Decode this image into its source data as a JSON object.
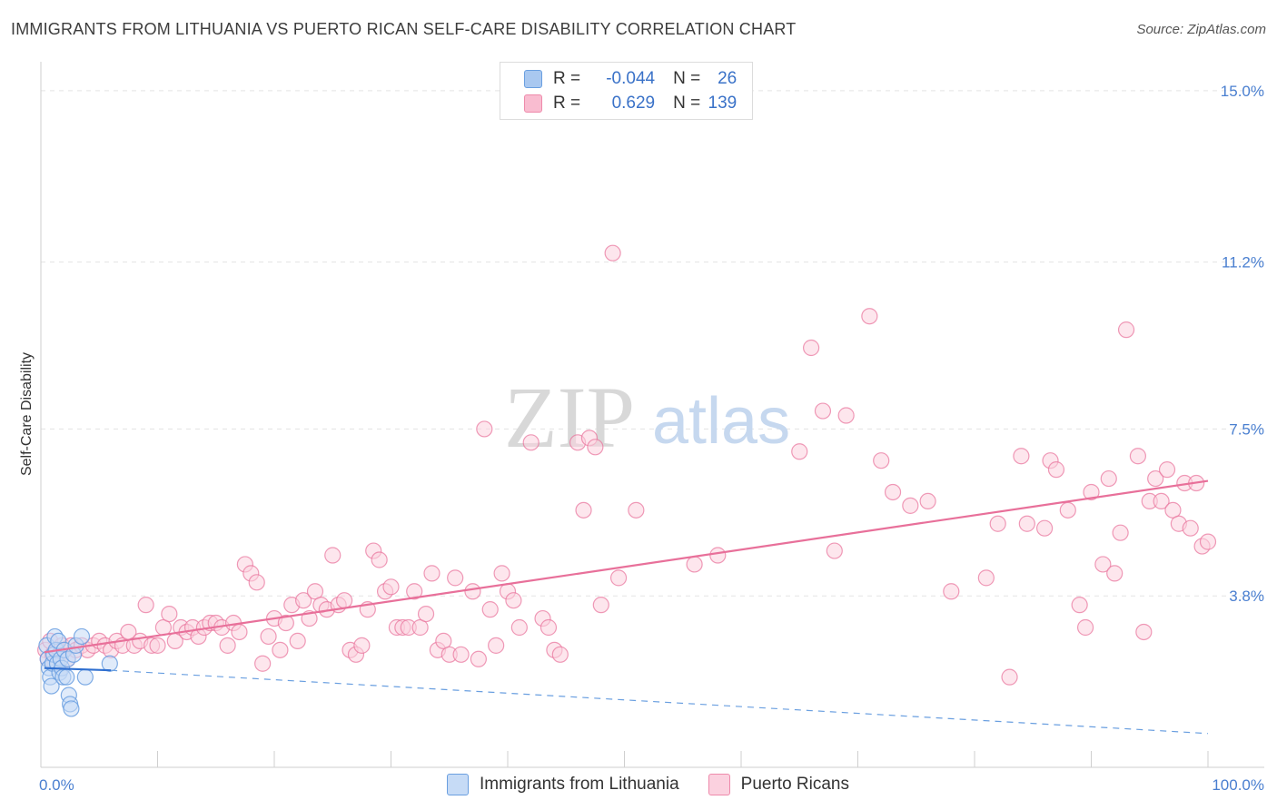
{
  "title": "IMMIGRANTS FROM LITHUANIA VS PUERTO RICAN SELF-CARE DISABILITY CORRELATION CHART",
  "source": "Source: ZipAtlas.com",
  "watermark": {
    "zip": "ZIP",
    "atlas": "atlas"
  },
  "legend": {
    "rows": [
      {
        "r_label": "R =",
        "r_value": "-0.044",
        "n_label": "N =",
        "n_value": "26",
        "color": "#a9c8f0",
        "border": "#6a9fe0"
      },
      {
        "r_label": "R =",
        "r_value": "0.629",
        "n_label": "N =",
        "n_value": "139",
        "color": "#f9bcd0",
        "border": "#ee8aab"
      }
    ]
  },
  "bottom_legend": [
    {
      "label": "Immigrants from Lithuania",
      "color": "#c6dbf6",
      "border": "#6a9fe0"
    },
    {
      "label": "Puerto Ricans",
      "color": "#fbd1df",
      "border": "#ee8aab"
    }
  ],
  "chart_data": {
    "type": "scatter",
    "title": "IMMIGRANTS FROM LITHUANIA VS PUERTO RICAN SELF-CARE DISABILITY CORRELATION CHART",
    "xlabel": "",
    "ylabel": "Self-Care Disability",
    "xlim": [
      0,
      100
    ],
    "ylim": [
      0,
      15.5
    ],
    "x_tick_labels": [
      "0.0%",
      "100.0%"
    ],
    "y_ticks": [
      3.8,
      7.5,
      11.2,
      15.0
    ],
    "y_tick_labels": [
      "3.8%",
      "7.5%",
      "11.2%",
      "15.0%"
    ],
    "grid": true,
    "series": [
      {
        "name": "Immigrants from Lithuania",
        "color": "#6a9fe0",
        "fill": "#c6dbf6",
        "points": [
          [
            0.5,
            2.7
          ],
          [
            0.6,
            2.4
          ],
          [
            0.7,
            2.2
          ],
          [
            0.8,
            2.0
          ],
          [
            0.9,
            1.8
          ],
          [
            1.0,
            2.3
          ],
          [
            1.1,
            2.5
          ],
          [
            1.2,
            2.9
          ],
          [
            1.3,
            2.6
          ],
          [
            1.4,
            2.3
          ],
          [
            1.5,
            2.8
          ],
          [
            1.6,
            2.1
          ],
          [
            1.7,
            2.4
          ],
          [
            1.8,
            2.2
          ],
          [
            1.9,
            2.0
          ],
          [
            2.0,
            2.6
          ],
          [
            2.2,
            2.0
          ],
          [
            2.3,
            2.4
          ],
          [
            2.4,
            1.6
          ],
          [
            2.5,
            1.4
          ],
          [
            2.6,
            1.3
          ],
          [
            2.8,
            2.5
          ],
          [
            3.0,
            2.7
          ],
          [
            3.5,
            2.9
          ],
          [
            3.8,
            2.0
          ],
          [
            5.9,
            2.3
          ]
        ],
        "trend": {
          "x": [
            0.3,
            6.0
          ],
          "y": [
            2.2,
            2.15
          ]
        },
        "trend_ext": {
          "x": [
            6.0,
            100.0
          ],
          "y": [
            2.15,
            0.75
          ]
        }
      },
      {
        "name": "Puerto Ricans",
        "color": "#e8709a",
        "fill": "#fbd1df",
        "points": [
          [
            0.4,
            2.6
          ],
          [
            0.6,
            2.4
          ],
          [
            0.8,
            2.8
          ],
          [
            1.0,
            2.5
          ],
          [
            1.2,
            2.3
          ],
          [
            1.4,
            2.6
          ],
          [
            1.6,
            2.5
          ],
          [
            1.8,
            2.7
          ],
          [
            2.0,
            2.6
          ],
          [
            2.3,
            2.4
          ],
          [
            2.6,
            2.7
          ],
          [
            3.0,
            2.6
          ],
          [
            3.5,
            2.7
          ],
          [
            4.0,
            2.6
          ],
          [
            4.5,
            2.7
          ],
          [
            5.0,
            2.8
          ],
          [
            5.5,
            2.7
          ],
          [
            6.0,
            2.6
          ],
          [
            6.5,
            2.8
          ],
          [
            7.0,
            2.7
          ],
          [
            7.5,
            3.0
          ],
          [
            8.0,
            2.7
          ],
          [
            8.5,
            2.8
          ],
          [
            9.0,
            3.6
          ],
          [
            9.5,
            2.7
          ],
          [
            10.0,
            2.7
          ],
          [
            10.5,
            3.1
          ],
          [
            11.0,
            3.4
          ],
          [
            11.5,
            2.8
          ],
          [
            12.0,
            3.1
          ],
          [
            12.5,
            3.0
          ],
          [
            13.0,
            3.1
          ],
          [
            13.5,
            2.9
          ],
          [
            14.0,
            3.1
          ],
          [
            14.5,
            3.2
          ],
          [
            15.0,
            3.2
          ],
          [
            15.5,
            3.1
          ],
          [
            16.0,
            2.7
          ],
          [
            16.5,
            3.2
          ],
          [
            17.0,
            3.0
          ],
          [
            17.5,
            4.5
          ],
          [
            18.0,
            4.3
          ],
          [
            18.5,
            4.1
          ],
          [
            19.0,
            2.3
          ],
          [
            19.5,
            2.9
          ],
          [
            20.0,
            3.3
          ],
          [
            20.5,
            2.6
          ],
          [
            21.0,
            3.2
          ],
          [
            21.5,
            3.6
          ],
          [
            22.0,
            2.8
          ],
          [
            22.5,
            3.7
          ],
          [
            23.0,
            3.3
          ],
          [
            23.5,
            3.9
          ],
          [
            24.0,
            3.6
          ],
          [
            24.5,
            3.5
          ],
          [
            25.0,
            4.7
          ],
          [
            25.5,
            3.6
          ],
          [
            26.0,
            3.7
          ],
          [
            26.5,
            2.6
          ],
          [
            27.0,
            2.5
          ],
          [
            27.5,
            2.7
          ],
          [
            28.0,
            3.5
          ],
          [
            28.5,
            4.8
          ],
          [
            29.0,
            4.6
          ],
          [
            29.5,
            3.9
          ],
          [
            30.0,
            4.0
          ],
          [
            30.5,
            3.1
          ],
          [
            31.0,
            3.1
          ],
          [
            31.5,
            3.1
          ],
          [
            32.0,
            3.9
          ],
          [
            32.5,
            3.1
          ],
          [
            33.0,
            3.4
          ],
          [
            33.5,
            4.3
          ],
          [
            34.0,
            2.6
          ],
          [
            34.5,
            2.8
          ],
          [
            35.0,
            2.5
          ],
          [
            35.5,
            4.2
          ],
          [
            36.0,
            2.5
          ],
          [
            37.0,
            3.9
          ],
          [
            37.5,
            2.4
          ],
          [
            38.0,
            7.5
          ],
          [
            38.5,
            3.5
          ],
          [
            39.0,
            2.7
          ],
          [
            39.5,
            4.3
          ],
          [
            40.0,
            3.9
          ],
          [
            40.5,
            3.7
          ],
          [
            41.0,
            3.1
          ],
          [
            42.0,
            7.2
          ],
          [
            43.0,
            3.3
          ],
          [
            43.5,
            3.1
          ],
          [
            44.0,
            2.6
          ],
          [
            44.5,
            2.5
          ],
          [
            46.0,
            7.2
          ],
          [
            46.5,
            5.7
          ],
          [
            47.0,
            7.3
          ],
          [
            47.5,
            7.1
          ],
          [
            48.0,
            3.6
          ],
          [
            49.0,
            11.4
          ],
          [
            49.5,
            4.2
          ],
          [
            51.0,
            5.7
          ],
          [
            56.0,
            4.5
          ],
          [
            58.0,
            4.7
          ],
          [
            65.0,
            7.0
          ],
          [
            66.0,
            9.3
          ],
          [
            67.0,
            7.9
          ],
          [
            68.0,
            4.8
          ],
          [
            69.0,
            7.8
          ],
          [
            71.0,
            10.0
          ],
          [
            72.0,
            6.8
          ],
          [
            73.0,
            6.1
          ],
          [
            74.5,
            5.8
          ],
          [
            76.0,
            5.9
          ],
          [
            78.0,
            3.9
          ],
          [
            81.0,
            4.2
          ],
          [
            82.0,
            5.4
          ],
          [
            83.0,
            2.0
          ],
          [
            84.0,
            6.9
          ],
          [
            84.5,
            5.4
          ],
          [
            86.0,
            5.3
          ],
          [
            86.5,
            6.8
          ],
          [
            87.0,
            6.6
          ],
          [
            88.0,
            5.7
          ],
          [
            89.0,
            3.6
          ],
          [
            89.5,
            3.1
          ],
          [
            90.0,
            6.1
          ],
          [
            91.0,
            4.5
          ],
          [
            91.5,
            6.4
          ],
          [
            92.0,
            4.3
          ],
          [
            92.5,
            5.2
          ],
          [
            93.0,
            9.7
          ],
          [
            94.0,
            6.9
          ],
          [
            94.5,
            3.0
          ],
          [
            95.0,
            5.9
          ],
          [
            95.5,
            6.4
          ],
          [
            96.0,
            5.9
          ],
          [
            96.5,
            6.6
          ],
          [
            97.0,
            5.7
          ],
          [
            97.5,
            5.4
          ],
          [
            98.0,
            6.3
          ],
          [
            98.5,
            5.3
          ],
          [
            99.0,
            6.3
          ],
          [
            99.5,
            4.9
          ],
          [
            100.0,
            5.0
          ]
        ],
        "trend": {
          "x": [
            0.3,
            100.0
          ],
          "y": [
            2.55,
            6.35
          ]
        }
      }
    ]
  }
}
